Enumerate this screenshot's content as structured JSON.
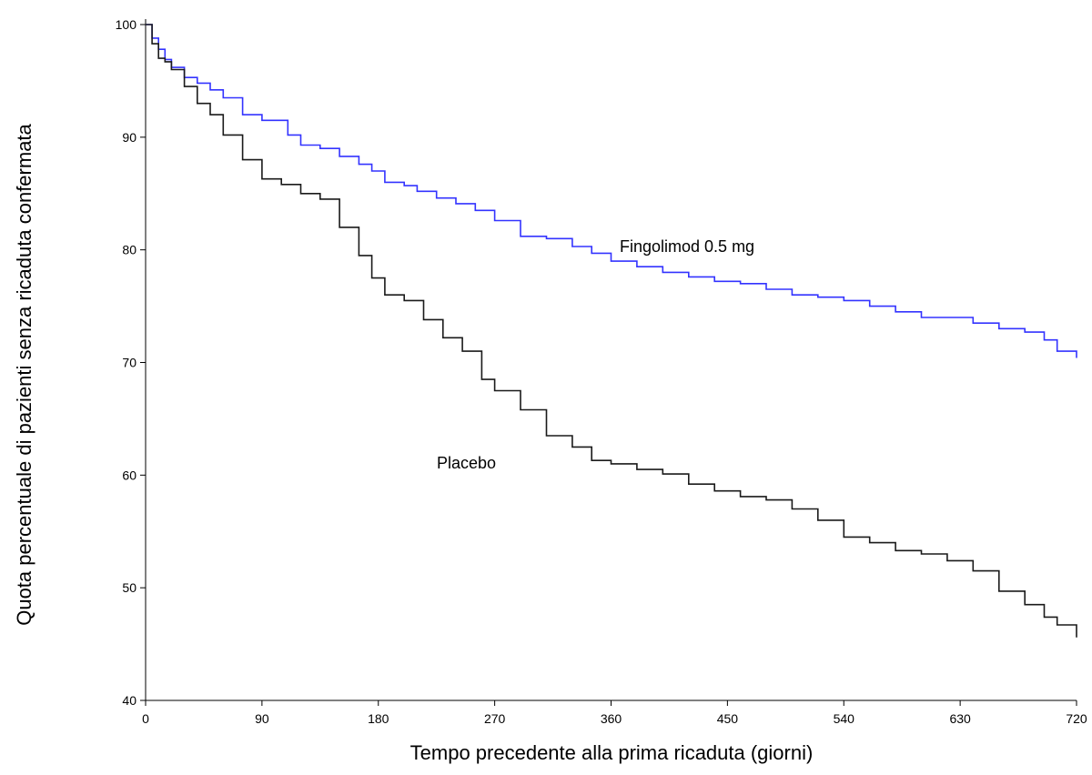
{
  "chart_data": {
    "type": "line",
    "step": true,
    "title": "",
    "xlabel": "Tempo precedente alla prima ricaduta (giorni)",
    "ylabel": "Quota percentuale di pazienti senza ricaduta confermata",
    "xlim": [
      0,
      720
    ],
    "ylim": [
      40,
      100
    ],
    "x_ticks": [
      0,
      90,
      180,
      270,
      360,
      450,
      540,
      630,
      720
    ],
    "y_ticks": [
      40,
      50,
      60,
      70,
      80,
      90,
      100
    ],
    "grid": false,
    "legend": "none",
    "series": [
      {
        "name": "Fingolimod 0.5 mg",
        "color": "#3333ff",
        "x": [
          0,
          5,
          10,
          15,
          20,
          30,
          40,
          50,
          60,
          75,
          90,
          110,
          120,
          135,
          150,
          165,
          175,
          185,
          200,
          210,
          225,
          240,
          255,
          270,
          290,
          310,
          330,
          345,
          360,
          380,
          400,
          420,
          440,
          460,
          480,
          500,
          520,
          540,
          560,
          580,
          600,
          620,
          640,
          660,
          680,
          695,
          705,
          720
        ],
        "y": [
          100,
          98.8,
          97.8,
          96.9,
          96.2,
          95.3,
          94.8,
          94.2,
          93.5,
          92,
          91.5,
          90.2,
          89.3,
          89,
          88.3,
          87.6,
          87,
          86,
          85.7,
          85.2,
          84.6,
          84.1,
          83.5,
          82.6,
          81.2,
          81,
          80.3,
          79.7,
          79,
          78.5,
          78,
          77.6,
          77.2,
          77,
          76.5,
          76,
          75.8,
          75.5,
          75,
          74.5,
          74,
          74,
          73.5,
          73,
          72.7,
          72,
          71,
          70.4
        ]
      },
      {
        "name": "Placebo",
        "color": "#1a1a1a",
        "x": [
          0,
          5,
          10,
          15,
          20,
          30,
          40,
          50,
          60,
          75,
          90,
          105,
          120,
          135,
          150,
          165,
          175,
          185,
          200,
          215,
          230,
          245,
          260,
          270,
          290,
          310,
          330,
          345,
          360,
          380,
          400,
          420,
          440,
          460,
          480,
          500,
          520,
          540,
          560,
          580,
          600,
          620,
          640,
          660,
          680,
          695,
          705,
          720
        ],
        "y": [
          100,
          98.3,
          97,
          96.7,
          96,
          94.5,
          93,
          92,
          90.2,
          88,
          86.3,
          85.8,
          85,
          84.5,
          82,
          79.5,
          77.5,
          76,
          75.5,
          73.8,
          72.2,
          71,
          68.5,
          67.5,
          65.8,
          63.5,
          62.5,
          61.3,
          61,
          60.5,
          60.1,
          59.2,
          58.6,
          58.1,
          57.8,
          57,
          56,
          54.5,
          54,
          53.3,
          53,
          52.4,
          51.5,
          49.7,
          48.5,
          47.4,
          46.7,
          45.6
        ]
      }
    ]
  }
}
